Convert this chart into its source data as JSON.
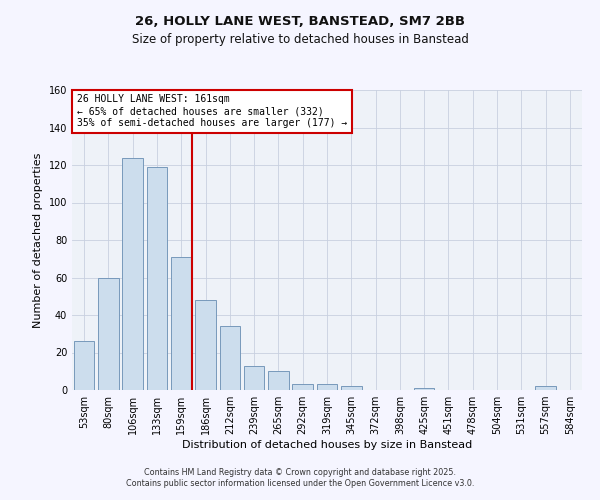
{
  "title": "26, HOLLY LANE WEST, BANSTEAD, SM7 2BB",
  "subtitle": "Size of property relative to detached houses in Banstead",
  "xlabel": "Distribution of detached houses by size in Banstead",
  "ylabel": "Number of detached properties",
  "bar_labels": [
    "53sqm",
    "80sqm",
    "106sqm",
    "133sqm",
    "159sqm",
    "186sqm",
    "212sqm",
    "239sqm",
    "265sqm",
    "292sqm",
    "319sqm",
    "345sqm",
    "372sqm",
    "398sqm",
    "425sqm",
    "451sqm",
    "478sqm",
    "504sqm",
    "531sqm",
    "557sqm",
    "584sqm"
  ],
  "bar_values": [
    26,
    60,
    124,
    119,
    71,
    48,
    34,
    13,
    10,
    3,
    3,
    2,
    0,
    0,
    1,
    0,
    0,
    0,
    0,
    2,
    0
  ],
  "bar_color": "#ccdded",
  "bar_edge_color": "#7799bb",
  "highlight_bar_index": 4,
  "highlight_line_color": "#cc0000",
  "ylim": [
    0,
    160
  ],
  "yticks": [
    0,
    20,
    40,
    60,
    80,
    100,
    120,
    140,
    160
  ],
  "annotation_title": "26 HOLLY LANE WEST: 161sqm",
  "annotation_line1": "← 65% of detached houses are smaller (332)",
  "annotation_line2": "35% of semi-detached houses are larger (177) →",
  "annotation_box_color": "#ffffff",
  "annotation_box_edge": "#cc0000",
  "plot_bg_color": "#eef2f8",
  "fig_bg_color": "#f5f5ff",
  "footer_line1": "Contains HM Land Registry data © Crown copyright and database right 2025.",
  "footer_line2": "Contains public sector information licensed under the Open Government Licence v3.0."
}
